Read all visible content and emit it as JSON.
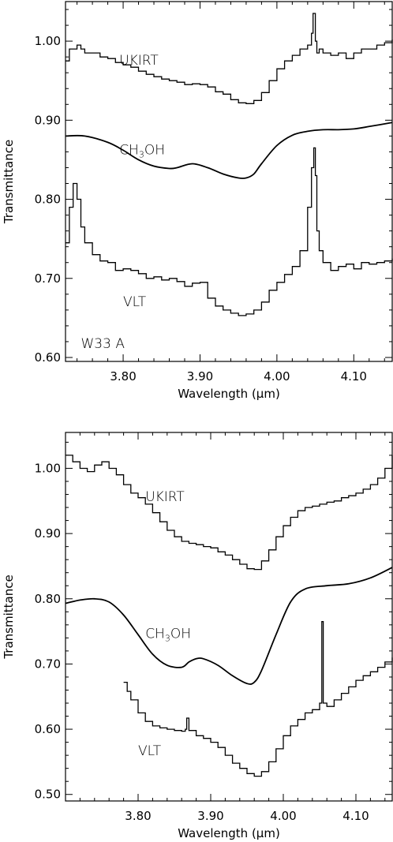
{
  "chart_data": [
    {
      "type": "line",
      "xlabel": "Wavelength (μm)",
      "ylabel": "Transmittance",
      "xlim": [
        3.725,
        4.15
      ],
      "ylim": [
        0.595,
        1.05
      ],
      "xticks": [
        "3.80",
        "3.90",
        "4.00",
        "4.10"
      ],
      "xtick_values": [
        3.8,
        3.9,
        4.0,
        4.1
      ],
      "yticks": [
        "0.60",
        "0.70",
        "0.80",
        "0.90",
        "1.00"
      ],
      "ytick_values": [
        0.6,
        0.7,
        0.8,
        0.9,
        1.0
      ],
      "annotations": [
        {
          "text": "UKIRT",
          "x": 3.795,
          "y": 0.97
        },
        {
          "text": "CH",
          "sub": "3",
          "tail": "OH",
          "x": 3.795,
          "y": 0.857
        },
        {
          "text": "VLT",
          "x": 3.8,
          "y": 0.665
        },
        {
          "text": "W33  A",
          "x": 3.745,
          "y": 0.612
        }
      ],
      "series": [
        {
          "style": "step",
          "x": [
            3.725,
            3.73,
            3.735,
            3.74,
            3.745,
            3.75,
            3.76,
            3.77,
            3.78,
            3.79,
            3.8,
            3.81,
            3.82,
            3.83,
            3.84,
            3.85,
            3.86,
            3.87,
            3.88,
            3.89,
            3.9,
            3.91,
            3.92,
            3.93,
            3.94,
            3.95,
            3.96,
            3.97,
            3.98,
            3.99,
            4.0,
            4.01,
            4.02,
            4.03,
            4.04,
            4.045,
            4.047,
            4.05,
            4.052,
            4.055,
            4.06,
            4.07,
            4.08,
            4.09,
            4.1,
            4.11,
            4.12,
            4.13,
            4.14,
            4.15
          ],
          "y": [
            0.975,
            0.99,
            0.99,
            0.995,
            0.99,
            0.985,
            0.985,
            0.98,
            0.978,
            0.973,
            0.97,
            0.967,
            0.962,
            0.958,
            0.955,
            0.952,
            0.95,
            0.948,
            0.945,
            0.946,
            0.945,
            0.942,
            0.936,
            0.933,
            0.926,
            0.922,
            0.921,
            0.925,
            0.935,
            0.95,
            0.965,
            0.975,
            0.982,
            0.99,
            0.995,
            1.01,
            1.035,
            1.0,
            0.985,
            0.99,
            0.985,
            0.982,
            0.985,
            0.978,
            0.985,
            0.99,
            0.99,
            0.995,
            0.998,
            1.002
          ]
        },
        {
          "style": "smooth",
          "x": [
            3.725,
            3.75,
            3.78,
            3.8,
            3.82,
            3.84,
            3.86,
            3.87,
            3.89,
            3.91,
            3.93,
            3.95,
            3.96,
            3.97,
            3.98,
            4.0,
            4.02,
            4.04,
            4.06,
            4.08,
            4.1,
            4.12,
            4.15
          ],
          "y": [
            0.88,
            0.88,
            0.872,
            0.862,
            0.85,
            0.842,
            0.839,
            0.84,
            0.845,
            0.84,
            0.832,
            0.827,
            0.827,
            0.832,
            0.845,
            0.868,
            0.881,
            0.886,
            0.888,
            0.888,
            0.889,
            0.892,
            0.897
          ]
        },
        {
          "style": "step",
          "x": [
            3.725,
            3.73,
            3.735,
            3.74,
            3.745,
            3.75,
            3.76,
            3.77,
            3.78,
            3.79,
            3.8,
            3.81,
            3.82,
            3.83,
            3.84,
            3.85,
            3.86,
            3.87,
            3.88,
            3.89,
            3.9,
            3.91,
            3.92,
            3.93,
            3.94,
            3.95,
            3.96,
            3.97,
            3.98,
            3.99,
            4.0,
            4.01,
            4.02,
            4.03,
            4.04,
            4.045,
            4.048,
            4.05,
            4.052,
            4.055,
            4.06,
            4.07,
            4.08,
            4.09,
            4.1,
            4.11,
            4.12,
            4.13,
            4.14,
            4.15
          ],
          "y": [
            0.745,
            0.79,
            0.82,
            0.8,
            0.765,
            0.745,
            0.73,
            0.722,
            0.72,
            0.71,
            0.712,
            0.71,
            0.706,
            0.7,
            0.702,
            0.698,
            0.7,
            0.696,
            0.69,
            0.694,
            0.695,
            0.675,
            0.665,
            0.66,
            0.656,
            0.653,
            0.655,
            0.66,
            0.67,
            0.685,
            0.695,
            0.705,
            0.715,
            0.735,
            0.79,
            0.84,
            0.865,
            0.83,
            0.76,
            0.735,
            0.72,
            0.71,
            0.715,
            0.718,
            0.712,
            0.72,
            0.718,
            0.72,
            0.722,
            0.725
          ]
        }
      ]
    },
    {
      "type": "line",
      "xlabel": "Wavelength (μm)",
      "ylabel": "Transmittance",
      "xlim": [
        3.7,
        4.15
      ],
      "ylim": [
        0.49,
        1.055
      ],
      "xticks": [
        "3.80",
        "3.90",
        "4.00",
        "4.10"
      ],
      "xtick_values": [
        3.8,
        3.9,
        4.0,
        4.1
      ],
      "yticks": [
        "0.50",
        "0.60",
        "0.70",
        "0.80",
        "0.90",
        "1.00"
      ],
      "ytick_values": [
        0.5,
        0.6,
        0.7,
        0.8,
        0.9,
        1.0
      ],
      "annotations": [
        {
          "text": "UKIRT",
          "x": 3.81,
          "y": 0.95
        },
        {
          "text": "CH",
          "sub": "3",
          "tail": "OH",
          "x": 3.81,
          "y": 0.74
        },
        {
          "text": "VLT",
          "x": 3.8,
          "y": 0.56
        }
      ],
      "series": [
        {
          "style": "step",
          "x": [
            3.7,
            3.71,
            3.72,
            3.73,
            3.74,
            3.75,
            3.76,
            3.77,
            3.78,
            3.79,
            3.8,
            3.81,
            3.82,
            3.83,
            3.84,
            3.85,
            3.86,
            3.87,
            3.88,
            3.89,
            3.9,
            3.91,
            3.92,
            3.93,
            3.94,
            3.95,
            3.96,
            3.97,
            3.98,
            3.99,
            4.0,
            4.01,
            4.02,
            4.03,
            4.04,
            4.05,
            4.06,
            4.07,
            4.08,
            4.09,
            4.1,
            4.11,
            4.12,
            4.13,
            4.14,
            4.15
          ],
          "y": [
            1.02,
            1.01,
            1.0,
            0.995,
            1.005,
            1.01,
            1.0,
            0.99,
            0.975,
            0.962,
            0.955,
            0.945,
            0.932,
            0.918,
            0.905,
            0.895,
            0.888,
            0.885,
            0.883,
            0.88,
            0.878,
            0.872,
            0.867,
            0.86,
            0.853,
            0.846,
            0.845,
            0.858,
            0.875,
            0.895,
            0.912,
            0.925,
            0.935,
            0.94,
            0.942,
            0.945,
            0.948,
            0.95,
            0.955,
            0.958,
            0.962,
            0.968,
            0.975,
            0.985,
            1.0,
            1.02
          ]
        },
        {
          "style": "smooth",
          "x": [
            3.7,
            3.72,
            3.74,
            3.76,
            3.78,
            3.8,
            3.82,
            3.84,
            3.86,
            3.87,
            3.88,
            3.89,
            3.91,
            3.93,
            3.95,
            3.96,
            3.97,
            3.99,
            4.01,
            4.03,
            4.06,
            4.09,
            4.12,
            4.15
          ],
          "y": [
            0.793,
            0.798,
            0.8,
            0.795,
            0.775,
            0.745,
            0.715,
            0.698,
            0.695,
            0.703,
            0.708,
            0.708,
            0.698,
            0.682,
            0.67,
            0.672,
            0.69,
            0.745,
            0.795,
            0.815,
            0.82,
            0.823,
            0.832,
            0.848
          ]
        },
        {
          "style": "step",
          "x": [
            3.78,
            3.785,
            3.79,
            3.8,
            3.81,
            3.82,
            3.83,
            3.84,
            3.85,
            3.86,
            3.865,
            3.867,
            3.87,
            3.88,
            3.89,
            3.9,
            3.91,
            3.92,
            3.93,
            3.94,
            3.95,
            3.96,
            3.97,
            3.98,
            3.99,
            4.0,
            4.01,
            4.02,
            4.03,
            4.04,
            4.05,
            4.053,
            4.055,
            4.06,
            4.07,
            4.08,
            4.09,
            4.1,
            4.11,
            4.12,
            4.13,
            4.14,
            4.15
          ],
          "y": [
            0.672,
            0.658,
            0.645,
            0.625,
            0.612,
            0.605,
            0.602,
            0.6,
            0.598,
            0.597,
            0.6,
            0.617,
            0.598,
            0.59,
            0.586,
            0.58,
            0.572,
            0.56,
            0.548,
            0.54,
            0.532,
            0.528,
            0.535,
            0.55,
            0.57,
            0.59,
            0.605,
            0.615,
            0.625,
            0.63,
            0.64,
            0.765,
            0.64,
            0.635,
            0.645,
            0.655,
            0.665,
            0.675,
            0.682,
            0.688,
            0.695,
            0.703,
            0.71
          ]
        }
      ]
    }
  ]
}
